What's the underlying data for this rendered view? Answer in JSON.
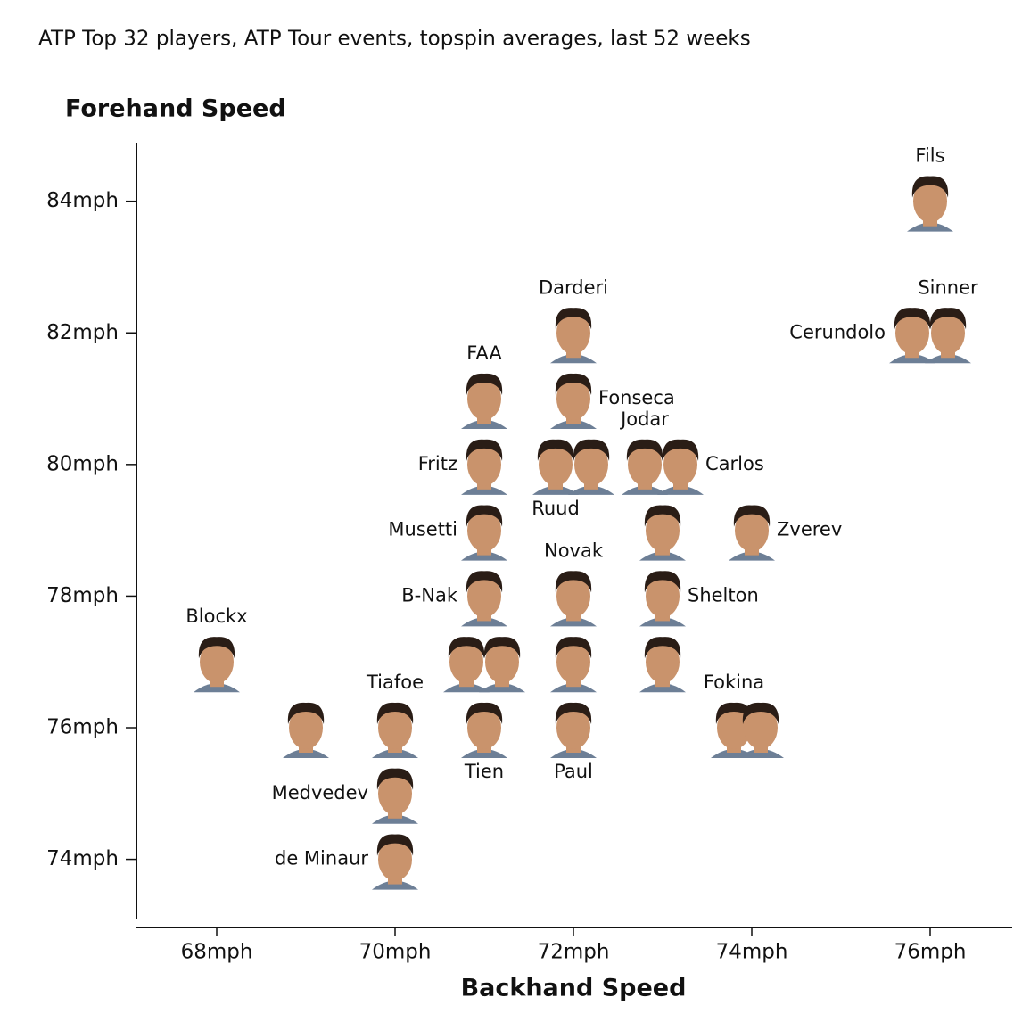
{
  "chart_data": {
    "type": "scatter",
    "subtitle": "ATP Top 32 players, ATP Tour events, topspin averages, last 52 weeks",
    "y_label": "Forehand Speed",
    "x_label": "Backhand Speed",
    "xlim": [
      67.1,
      76.92
    ],
    "ylim": [
      73.1,
      84.89
    ],
    "xticks": [
      {
        "value": 68,
        "label": "68mph"
      },
      {
        "value": 70,
        "label": "70mph"
      },
      {
        "value": 72,
        "label": "72mph"
      },
      {
        "value": 74,
        "label": "74mph"
      },
      {
        "value": 76,
        "label": "76mph"
      }
    ],
    "yticks": [
      {
        "value": 74,
        "label": "74mph"
      },
      {
        "value": 76,
        "label": "76mph"
      },
      {
        "value": 78,
        "label": "78mph"
      },
      {
        "value": 80,
        "label": "80mph"
      },
      {
        "value": 82,
        "label": "82mph"
      },
      {
        "value": 84,
        "label": "84mph"
      }
    ],
    "color": "#c9936c",
    "series": [
      {
        "names": [
          "Fils",
          "Sinner",
          "Cerundolo",
          "Darderi",
          "FAA",
          "Fonseca",
          "Jodar",
          "Carlos",
          "Fritz",
          "Ruud",
          null,
          "Musetti",
          null,
          "Zverev",
          "Novak",
          "B-Nak",
          "Shelton",
          "Blockx",
          null,
          null,
          null,
          null,
          "Tiafoe",
          null,
          "Tien",
          "Paul",
          "Fokina",
          null,
          "Medvedev",
          "de Minaur"
        ],
        "x": [
          76.0,
          76.2,
          75.8,
          72.0,
          71.0,
          72.0,
          72.8,
          73.2,
          71.0,
          71.8,
          72.2,
          71.0,
          73.0,
          74.0,
          72.0,
          71.0,
          73.0,
          68.0,
          70.8,
          71.2,
          72.0,
          73.0,
          70.0,
          69.0,
          71.0,
          72.0,
          73.8,
          74.1,
          70.0,
          70.0
        ],
        "values": [
          84.0,
          82.0,
          82.0,
          82.0,
          81.0,
          81.0,
          80.0,
          80.0,
          80.0,
          80.0,
          80.0,
          79.0,
          79.0,
          79.0,
          78.0,
          78.0,
          78.0,
          77.0,
          77.0,
          77.0,
          77.0,
          77.0,
          76.0,
          76.0,
          76.0,
          76.0,
          76.0,
          76.0,
          75.0,
          74.0
        ]
      }
    ]
  }
}
